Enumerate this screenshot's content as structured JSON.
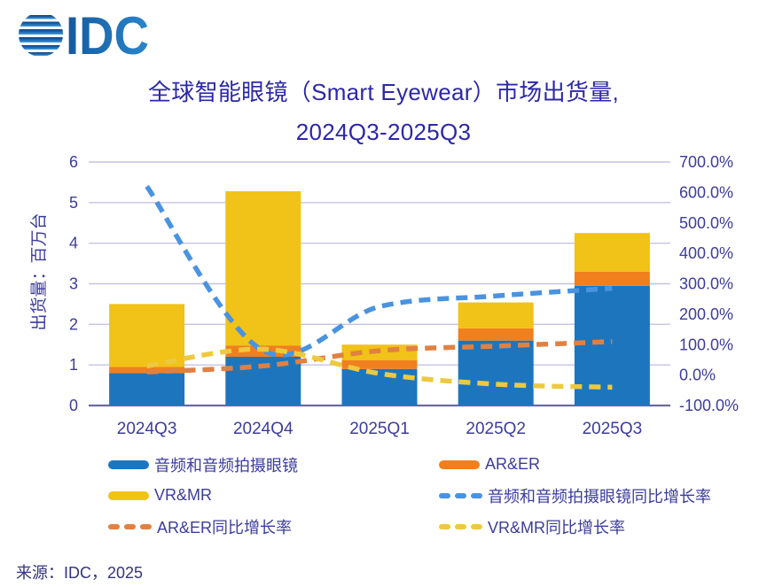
{
  "logo": {
    "text": "IDC"
  },
  "title": {
    "line1": "全球智能眼镜（Smart Eyewear）市场出货量,",
    "line2": "2024Q3-2025Q3"
  },
  "source": "来源：IDC，2025",
  "legend": {
    "items": [
      {
        "label": "音频和音频拍摄眼镜",
        "color": "#1d76bd",
        "style": "solid"
      },
      {
        "label": "AR&ER",
        "color": "#f0801d",
        "style": "solid"
      },
      {
        "label": "VR&MR",
        "color": "#f1c217",
        "style": "solid"
      },
      {
        "label": "音频和音频拍摄眼镜同比增长率",
        "color": "#4a93e0",
        "style": "dashed"
      },
      {
        "label": "AR&ER同比增长率",
        "color": "#e08142",
        "style": "dashed"
      },
      {
        "label": "VR&MR同比增长率",
        "color": "#edc93f",
        "style": "dashed"
      }
    ]
  },
  "chart_data": {
    "type": "bar",
    "subtype": "stacked-bar-with-growth-lines",
    "title": "全球智能眼镜（Smart Eyewear）市场出货量, 2024Q3-2025Q3",
    "categories": [
      "2024Q3",
      "2024Q4",
      "2025Q1",
      "2025Q2",
      "2025Q3"
    ],
    "bar_series": [
      {
        "name": "音频和音频拍摄眼镜",
        "color": "#1d76bd",
        "values": [
          0.8,
          1.2,
          0.9,
          1.6,
          2.95
        ]
      },
      {
        "name": "AR&ER",
        "color": "#f0801d",
        "values": [
          0.15,
          0.28,
          0.22,
          0.3,
          0.35
        ]
      },
      {
        "name": "VR&MR",
        "color": "#f1c217",
        "values": [
          1.55,
          3.8,
          0.38,
          0.64,
          0.95
        ]
      }
    ],
    "bar_totals": [
      2.5,
      5.28,
      1.5,
      2.54,
      4.25
    ],
    "line_series": [
      {
        "name": "音频和音频拍摄眼镜同比增长率",
        "color": "#4a93e0",
        "values_pct": [
          620,
          80,
          225,
          260,
          285
        ]
      },
      {
        "name": "AR&ER同比增长率",
        "color": "#e08142",
        "values_pct": [
          10,
          30,
          80,
          95,
          110
        ]
      },
      {
        "name": "VR&MR同比增长率",
        "color": "#edc93f",
        "values_pct": [
          30,
          85,
          5,
          -30,
          -40
        ]
      }
    ],
    "left_axis": {
      "title": "出货量：百万台",
      "min": 0,
      "max": 6,
      "ticks": [
        0,
        1,
        2,
        3,
        4,
        5,
        6
      ]
    },
    "right_axis": {
      "min": -100,
      "max": 700,
      "ticks_pct": [
        700,
        600,
        500,
        400,
        300,
        200,
        100,
        0,
        -100
      ],
      "labels": [
        "700.0%",
        "600.0%",
        "500.0%",
        "400.0%",
        "300.0%",
        "200.0%",
        "100.0%",
        "0.0%",
        "-100.0%"
      ]
    },
    "grid": true,
    "legend_position": "bottom",
    "colors": {
      "grid_line": "#c6c2e4",
      "axis_line": "#6b67ad",
      "axis_text": "#3c3c9e",
      "title_text": "#2c28a8"
    }
  }
}
